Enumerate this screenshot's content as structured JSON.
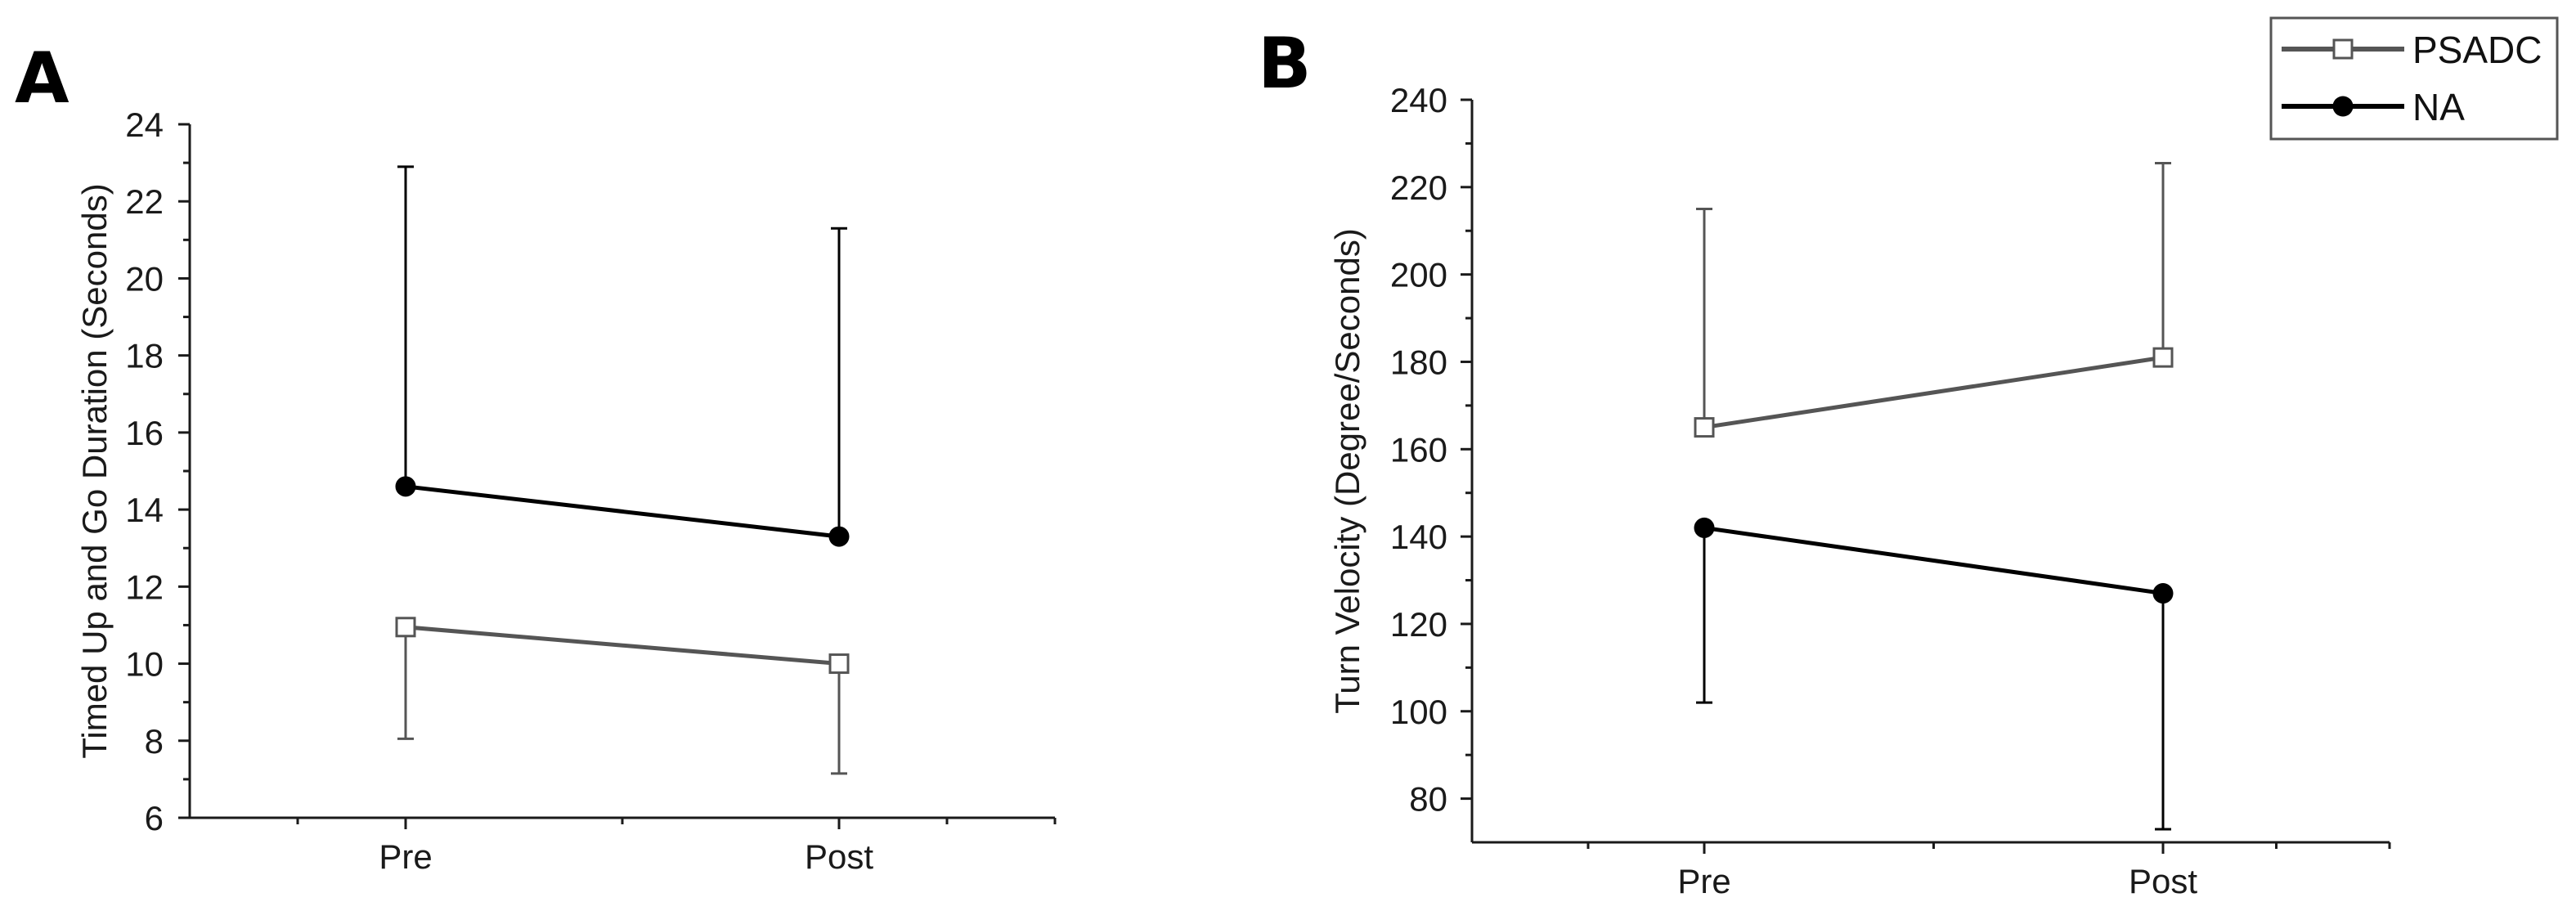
{
  "chart_data": [
    {
      "type": "line",
      "panel_label": "A",
      "title": "",
      "xlabel": "",
      "ylabel": "Timed Up and Go Duration (Seconds)",
      "categories": [
        "Pre",
        "Post"
      ],
      "ylim": [
        6,
        24
      ],
      "yticks": [
        6,
        8,
        10,
        12,
        14,
        16,
        18,
        20,
        22,
        24
      ],
      "series": [
        {
          "name": "PSADC",
          "values": [
            10.95,
            10.0
          ],
          "error_low": [
            8.05,
            7.15
          ],
          "error_high": [
            10.95,
            10.0
          ],
          "color": "#555555",
          "marker": "open-square"
        },
        {
          "name": "NA",
          "values": [
            14.6,
            13.3
          ],
          "error_low": [
            14.6,
            13.3
          ],
          "error_high": [
            22.9,
            21.3
          ],
          "color": "#000000",
          "marker": "filled-circle"
        }
      ]
    },
    {
      "type": "line",
      "panel_label": "B",
      "title": "",
      "xlabel": "",
      "ylabel": "Turn Velocity (Degree/Seconds)",
      "categories": [
        "Pre",
        "Post"
      ],
      "ylim": [
        70,
        240
      ],
      "yticks": [
        80,
        100,
        120,
        140,
        160,
        180,
        200,
        220,
        240
      ],
      "series": [
        {
          "name": "PSADC",
          "values": [
            165,
            181
          ],
          "error_low": [
            165,
            181
          ],
          "error_high": [
            215,
            225.5
          ],
          "color": "#555555",
          "marker": "open-square"
        },
        {
          "name": "NA",
          "values": [
            142,
            127
          ],
          "error_low": [
            102,
            73
          ],
          "error_high": [
            142,
            127
          ],
          "color": "#000000",
          "marker": "filled-circle"
        }
      ]
    }
  ],
  "legend": {
    "position": "top-right",
    "entries": [
      {
        "label": "PSADC",
        "marker": "open-square",
        "color": "#555555"
      },
      {
        "label": "NA",
        "marker": "filled-circle",
        "color": "#000000"
      }
    ]
  }
}
